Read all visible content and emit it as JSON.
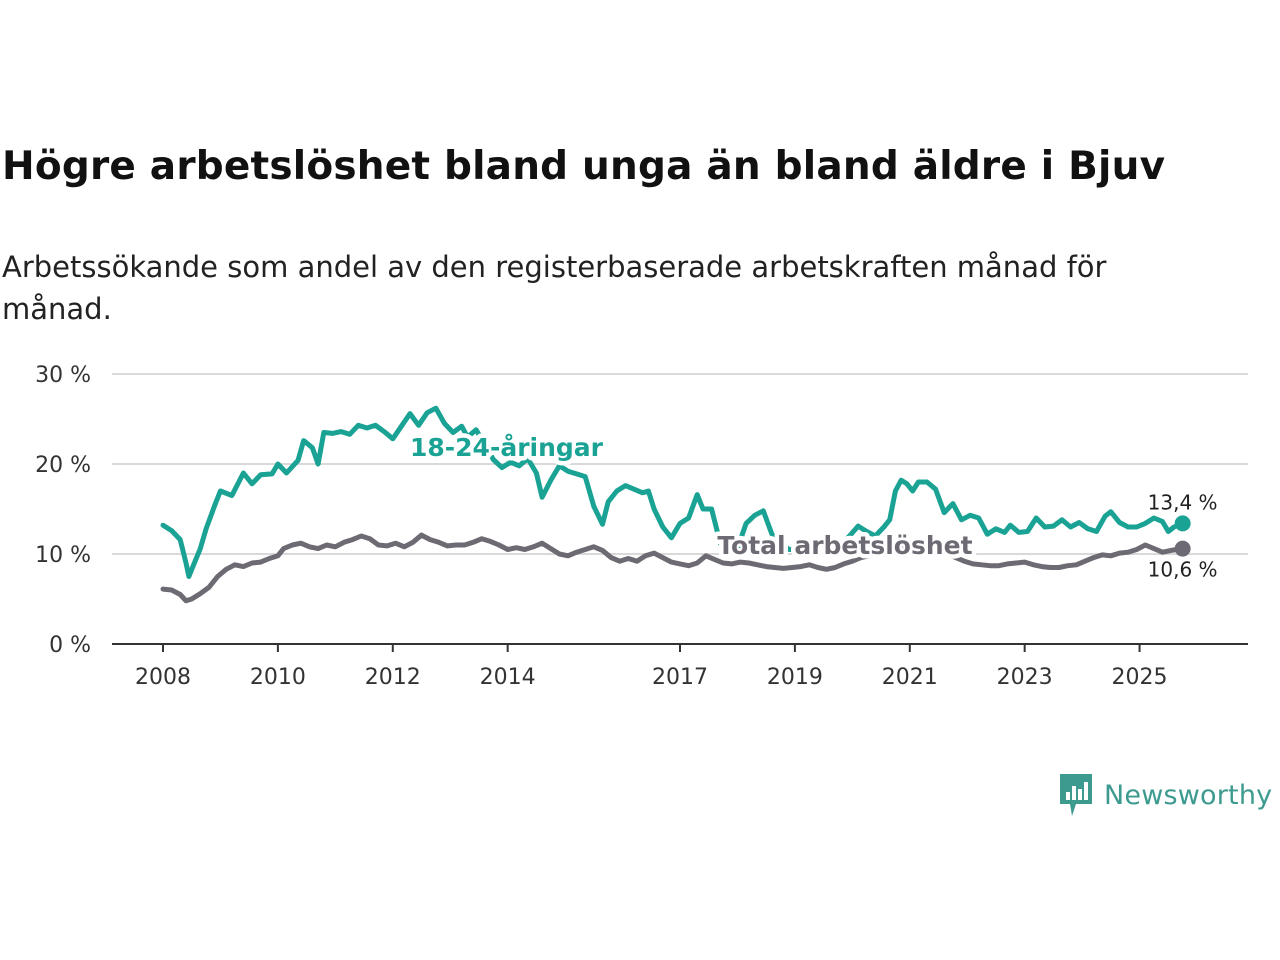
{
  "chart_title": "Högre arbetslöshet bland unga än bland äldre i Bjuv",
  "chart_subtitle": "Arbetssökande som andel av den registerbaserade arbetskraften månad för månad.",
  "brand": {
    "name": "Newsworthy",
    "icon": "newsworthy-logo-icon",
    "color": "#3d9a8f"
  },
  "chart_data": {
    "type": "line",
    "xlim": [
      2008.0,
      2026.0
    ],
    "ylim": [
      0,
      30
    ],
    "ytick_values": [
      0,
      10,
      20,
      30
    ],
    "ytick_labels": [
      "0 %",
      "10 %",
      "20 %",
      "30 %"
    ],
    "xtick_labels": [
      "2008",
      "2010",
      "2012",
      "2014",
      "2017",
      "2019",
      "2021",
      "2023",
      "2025"
    ],
    "xtick_values": [
      2008.0,
      2010.0,
      2012.0,
      2014.0,
      2017.0,
      2019.0,
      2021.0,
      2023.0,
      2025.0
    ],
    "grid": true,
    "series": [
      {
        "name": "18-24-åringar",
        "color": "#1aa394",
        "end_label": "13,4 %",
        "label_at": [
          2012.3,
          20.9
        ],
        "points": [
          [
            2008.0,
            13.2
          ],
          [
            2008.15,
            12.6
          ],
          [
            2008.3,
            11.6
          ],
          [
            2008.4,
            9.0
          ],
          [
            2008.45,
            7.5
          ],
          [
            2008.52,
            8.6
          ],
          [
            2008.65,
            10.6
          ],
          [
            2008.75,
            12.8
          ],
          [
            2008.9,
            15.4
          ],
          [
            2009.0,
            17.0
          ],
          [
            2009.2,
            16.5
          ],
          [
            2009.4,
            19.0
          ],
          [
            2009.55,
            17.8
          ],
          [
            2009.7,
            18.8
          ],
          [
            2009.9,
            18.9
          ],
          [
            2010.0,
            20.0
          ],
          [
            2010.15,
            19.0
          ],
          [
            2010.35,
            20.4
          ],
          [
            2010.45,
            22.6
          ],
          [
            2010.6,
            21.8
          ],
          [
            2010.7,
            20.0
          ],
          [
            2010.8,
            23.5
          ],
          [
            2010.95,
            23.4
          ],
          [
            2011.1,
            23.6
          ],
          [
            2011.25,
            23.3
          ],
          [
            2011.4,
            24.3
          ],
          [
            2011.55,
            24.0
          ],
          [
            2011.7,
            24.3
          ],
          [
            2011.85,
            23.6
          ],
          [
            2012.0,
            22.8
          ],
          [
            2012.15,
            24.2
          ],
          [
            2012.3,
            25.6
          ],
          [
            2012.45,
            24.3
          ],
          [
            2012.6,
            25.7
          ],
          [
            2012.75,
            26.2
          ],
          [
            2012.9,
            24.5
          ],
          [
            2013.05,
            23.5
          ],
          [
            2013.2,
            24.2
          ],
          [
            2013.3,
            23.0
          ],
          [
            2013.45,
            23.8
          ],
          [
            2013.6,
            22.2
          ],
          [
            2013.75,
            20.5
          ],
          [
            2013.9,
            19.6
          ],
          [
            2014.05,
            20.2
          ],
          [
            2014.2,
            19.8
          ],
          [
            2014.35,
            20.6
          ],
          [
            2014.5,
            19.0
          ],
          [
            2014.6,
            16.3
          ],
          [
            2014.75,
            18.2
          ],
          [
            2014.9,
            19.8
          ],
          [
            2015.05,
            19.2
          ],
          [
            2015.2,
            18.9
          ],
          [
            2015.35,
            18.6
          ],
          [
            2015.5,
            15.3
          ],
          [
            2015.65,
            13.3
          ],
          [
            2015.75,
            15.8
          ],
          [
            2015.9,
            17.0
          ],
          [
            2016.05,
            17.6
          ],
          [
            2016.2,
            17.2
          ],
          [
            2016.35,
            16.8
          ],
          [
            2016.45,
            17.0
          ],
          [
            2016.55,
            15.0
          ],
          [
            2016.7,
            13.0
          ],
          [
            2016.85,
            11.8
          ],
          [
            2017.0,
            13.4
          ],
          [
            2017.15,
            14.0
          ],
          [
            2017.3,
            16.6
          ],
          [
            2017.4,
            15.0
          ],
          [
            2017.55,
            15.0
          ],
          [
            2017.7,
            11.2
          ],
          [
            2017.85,
            10.9
          ],
          [
            2018.0,
            10.6
          ],
          [
            2018.15,
            13.4
          ],
          [
            2018.3,
            14.3
          ],
          [
            2018.45,
            14.8
          ],
          [
            2018.6,
            12.2
          ],
          [
            2018.75,
            11.2
          ],
          [
            2018.9,
            10.5
          ],
          [
            2019.05,
            10.5
          ],
          [
            2019.2,
            10.8
          ],
          [
            2019.35,
            10.5
          ],
          [
            2019.5,
            10.8
          ],
          [
            2019.65,
            11.5
          ],
          [
            2019.8,
            11.0
          ],
          [
            2019.95,
            12.0
          ],
          [
            2020.1,
            13.1
          ],
          [
            2020.25,
            12.5
          ],
          [
            2020.4,
            12.0
          ],
          [
            2020.55,
            13.0
          ],
          [
            2020.65,
            13.8
          ],
          [
            2020.75,
            17.0
          ],
          [
            2020.85,
            18.2
          ],
          [
            2020.95,
            17.8
          ],
          [
            2021.05,
            17.0
          ],
          [
            2021.15,
            18.0
          ],
          [
            2021.3,
            18.0
          ],
          [
            2021.45,
            17.2
          ],
          [
            2021.6,
            14.6
          ],
          [
            2021.75,
            15.6
          ],
          [
            2021.9,
            13.8
          ],
          [
            2022.05,
            14.3
          ],
          [
            2022.2,
            14.0
          ],
          [
            2022.35,
            12.2
          ],
          [
            2022.5,
            12.8
          ],
          [
            2022.65,
            12.4
          ],
          [
            2022.75,
            13.2
          ],
          [
            2022.9,
            12.4
          ],
          [
            2023.05,
            12.5
          ],
          [
            2023.2,
            14.0
          ],
          [
            2023.35,
            13.0
          ],
          [
            2023.5,
            13.1
          ],
          [
            2023.65,
            13.8
          ],
          [
            2023.8,
            13.0
          ],
          [
            2023.95,
            13.5
          ],
          [
            2024.1,
            12.8
          ],
          [
            2024.25,
            12.5
          ],
          [
            2024.4,
            14.2
          ],
          [
            2024.5,
            14.7
          ],
          [
            2024.65,
            13.5
          ],
          [
            2024.8,
            13.0
          ],
          [
            2024.95,
            13.0
          ],
          [
            2025.1,
            13.4
          ],
          [
            2025.25,
            14.0
          ],
          [
            2025.4,
            13.6
          ],
          [
            2025.5,
            12.5
          ],
          [
            2025.6,
            13.0
          ],
          [
            2025.75,
            13.4
          ]
        ]
      },
      {
        "name": "Total arbetslöshet",
        "color": "#6e6a73",
        "end_label": "10,6 %",
        "label_at": [
          2017.65,
          10.0
        ],
        "points": [
          [
            2008.0,
            6.1
          ],
          [
            2008.15,
            6.0
          ],
          [
            2008.3,
            5.5
          ],
          [
            2008.4,
            4.8
          ],
          [
            2008.5,
            5.0
          ],
          [
            2008.65,
            5.6
          ],
          [
            2008.8,
            6.3
          ],
          [
            2008.95,
            7.5
          ],
          [
            2009.1,
            8.3
          ],
          [
            2009.25,
            8.8
          ],
          [
            2009.4,
            8.6
          ],
          [
            2009.55,
            9.0
          ],
          [
            2009.7,
            9.1
          ],
          [
            2009.85,
            9.5
          ],
          [
            2010.0,
            9.8
          ],
          [
            2010.1,
            10.6
          ],
          [
            2010.25,
            11.0
          ],
          [
            2010.4,
            11.2
          ],
          [
            2010.55,
            10.8
          ],
          [
            2010.7,
            10.6
          ],
          [
            2010.85,
            11.0
          ],
          [
            2011.0,
            10.8
          ],
          [
            2011.15,
            11.3
          ],
          [
            2011.3,
            11.6
          ],
          [
            2011.45,
            12.0
          ],
          [
            2011.6,
            11.7
          ],
          [
            2011.75,
            11.0
          ],
          [
            2011.9,
            10.9
          ],
          [
            2012.05,
            11.2
          ],
          [
            2012.2,
            10.8
          ],
          [
            2012.35,
            11.3
          ],
          [
            2012.5,
            12.1
          ],
          [
            2012.65,
            11.6
          ],
          [
            2012.8,
            11.3
          ],
          [
            2012.95,
            10.9
          ],
          [
            2013.1,
            11.0
          ],
          [
            2013.25,
            11.0
          ],
          [
            2013.4,
            11.3
          ],
          [
            2013.55,
            11.7
          ],
          [
            2013.7,
            11.4
          ],
          [
            2013.85,
            11.0
          ],
          [
            2014.0,
            10.5
          ],
          [
            2014.15,
            10.7
          ],
          [
            2014.3,
            10.5
          ],
          [
            2014.45,
            10.8
          ],
          [
            2014.6,
            11.2
          ],
          [
            2014.75,
            10.6
          ],
          [
            2014.9,
            10.0
          ],
          [
            2015.05,
            9.8
          ],
          [
            2015.2,
            10.2
          ],
          [
            2015.35,
            10.5
          ],
          [
            2015.5,
            10.8
          ],
          [
            2015.65,
            10.4
          ],
          [
            2015.8,
            9.6
          ],
          [
            2015.95,
            9.2
          ],
          [
            2016.1,
            9.5
          ],
          [
            2016.25,
            9.2
          ],
          [
            2016.4,
            9.8
          ],
          [
            2016.55,
            10.1
          ],
          [
            2016.7,
            9.6
          ],
          [
            2016.85,
            9.1
          ],
          [
            2017.0,
            8.9
          ],
          [
            2017.15,
            8.7
          ],
          [
            2017.3,
            9.0
          ],
          [
            2017.45,
            9.8
          ],
          [
            2017.6,
            9.4
          ],
          [
            2017.75,
            9.0
          ],
          [
            2017.9,
            8.9
          ],
          [
            2018.05,
            9.1
          ],
          [
            2018.2,
            9.0
          ],
          [
            2018.35,
            8.8
          ],
          [
            2018.5,
            8.6
          ],
          [
            2018.65,
            8.5
          ],
          [
            2018.8,
            8.4
          ],
          [
            2018.95,
            8.5
          ],
          [
            2019.1,
            8.6
          ],
          [
            2019.25,
            8.8
          ],
          [
            2019.4,
            8.5
          ],
          [
            2019.55,
            8.3
          ],
          [
            2019.7,
            8.5
          ],
          [
            2019.85,
            8.9
          ],
          [
            2020.0,
            9.2
          ],
          [
            2020.15,
            9.6
          ],
          [
            2020.3,
            9.8
          ],
          [
            2020.45,
            10.0
          ],
          [
            2020.6,
            10.6
          ],
          [
            2020.75,
            11.2
          ],
          [
            2020.9,
            11.0
          ],
          [
            2021.05,
            11.6
          ],
          [
            2021.2,
            11.5
          ],
          [
            2021.35,
            11.0
          ],
          [
            2021.5,
            10.6
          ],
          [
            2021.65,
            10.0
          ],
          [
            2021.8,
            9.6
          ],
          [
            2021.95,
            9.2
          ],
          [
            2022.1,
            8.9
          ],
          [
            2022.25,
            8.8
          ],
          [
            2022.4,
            8.7
          ],
          [
            2022.55,
            8.7
          ],
          [
            2022.7,
            8.9
          ],
          [
            2022.85,
            9.0
          ],
          [
            2023.0,
            9.1
          ],
          [
            2023.15,
            8.8
          ],
          [
            2023.3,
            8.6
          ],
          [
            2023.45,
            8.5
          ],
          [
            2023.6,
            8.5
          ],
          [
            2023.75,
            8.7
          ],
          [
            2023.9,
            8.8
          ],
          [
            2024.05,
            9.2
          ],
          [
            2024.2,
            9.6
          ],
          [
            2024.35,
            9.9
          ],
          [
            2024.5,
            9.8
          ],
          [
            2024.65,
            10.1
          ],
          [
            2024.8,
            10.2
          ],
          [
            2024.95,
            10.5
          ],
          [
            2025.1,
            11.0
          ],
          [
            2025.25,
            10.6
          ],
          [
            2025.4,
            10.2
          ],
          [
            2025.55,
            10.4
          ],
          [
            2025.65,
            10.5
          ],
          [
            2025.75,
            10.6
          ]
        ]
      }
    ]
  }
}
